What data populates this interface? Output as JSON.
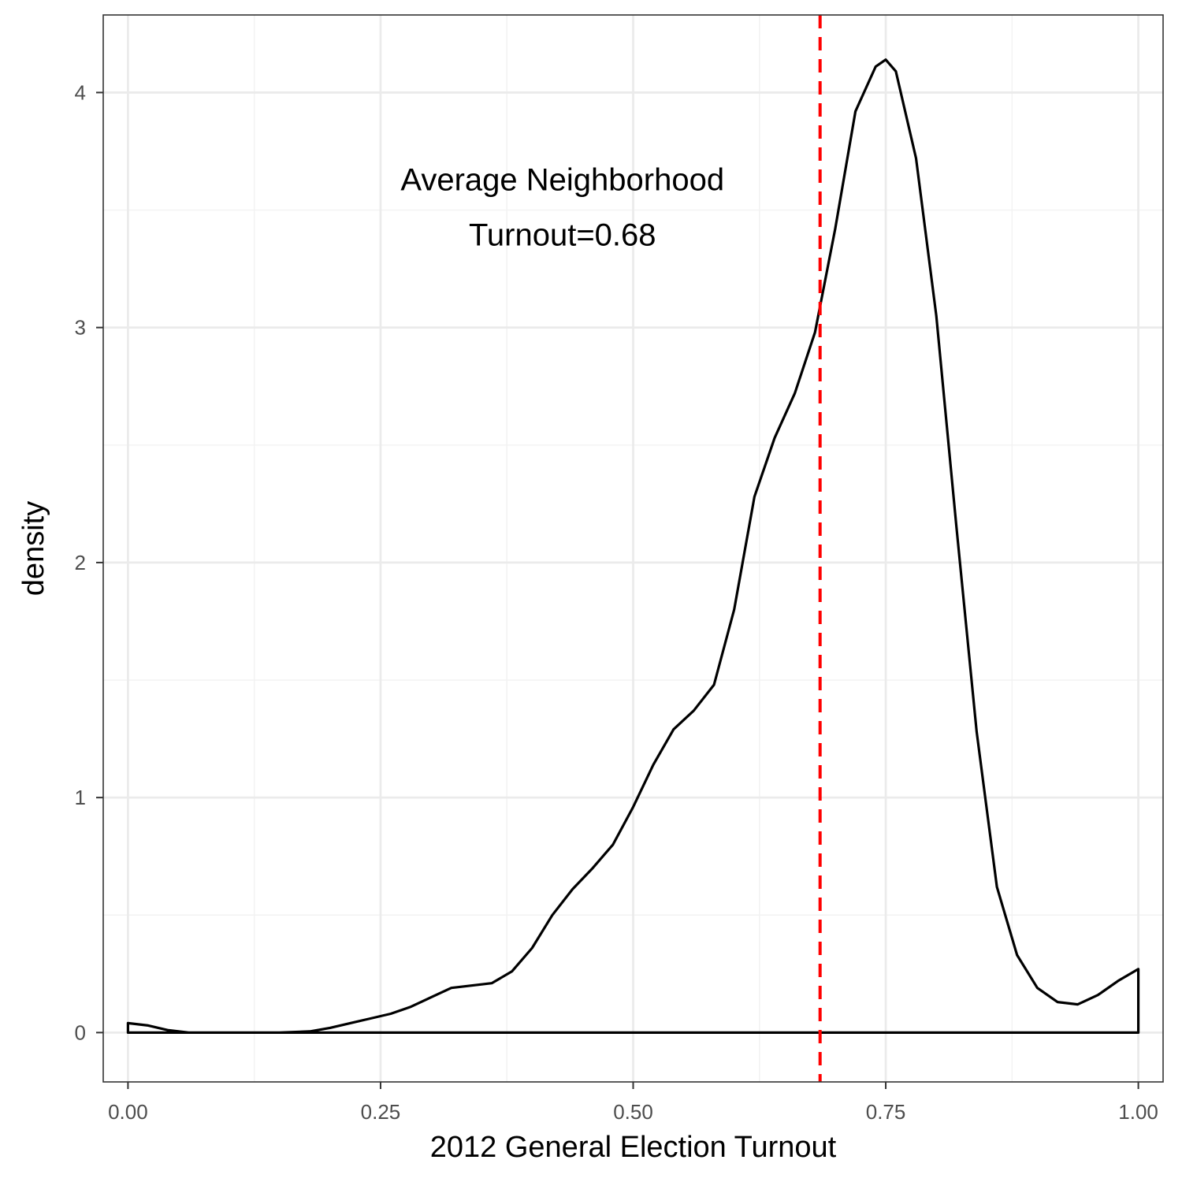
{
  "chart_data": {
    "type": "area",
    "xlabel": "2012 General Election Turnout",
    "ylabel": "density",
    "xlim": [
      -0.0245,
      1.0245
    ],
    "ylim": [
      -0.21,
      4.33
    ],
    "x_ticks": [
      0.0,
      0.25,
      0.5,
      0.75,
      1.0
    ],
    "x_tick_labels": [
      "0.00",
      "0.25",
      "0.50",
      "0.75",
      "1.00"
    ],
    "x_minor_ticks": [
      0.125,
      0.375,
      0.625,
      0.875
    ],
    "y_ticks": [
      0,
      1,
      2,
      3,
      4
    ],
    "y_tick_labels": [
      "0",
      "1",
      "2",
      "3",
      "4"
    ],
    "y_minor_ticks": [
      0.5,
      1.5,
      2.5,
      3.5
    ],
    "grid": true,
    "series": [
      {
        "x": [
          0.0,
          0.02,
          0.04,
          0.06,
          0.08,
          0.1,
          0.15,
          0.18,
          0.2,
          0.22,
          0.24,
          0.26,
          0.28,
          0.3,
          0.32,
          0.34,
          0.36,
          0.38,
          0.4,
          0.42,
          0.44,
          0.46,
          0.48,
          0.5,
          0.52,
          0.54,
          0.56,
          0.58,
          0.6,
          0.62,
          0.64,
          0.66,
          0.68,
          0.7,
          0.72,
          0.74,
          0.75,
          0.76,
          0.78,
          0.8,
          0.82,
          0.84,
          0.86,
          0.88,
          0.9,
          0.92,
          0.94,
          0.96,
          0.98,
          1.0
        ],
        "y": [
          0.04,
          0.03,
          0.01,
          0.0,
          0.0,
          0.0,
          0.0,
          0.005,
          0.02,
          0.04,
          0.06,
          0.08,
          0.11,
          0.15,
          0.19,
          0.2,
          0.21,
          0.26,
          0.36,
          0.5,
          0.61,
          0.7,
          0.8,
          0.96,
          1.14,
          1.29,
          1.37,
          1.48,
          1.8,
          2.28,
          2.53,
          2.72,
          2.98,
          3.42,
          3.92,
          4.11,
          4.14,
          4.09,
          3.72,
          3.05,
          2.15,
          1.28,
          0.62,
          0.33,
          0.19,
          0.13,
          0.12,
          0.16,
          0.22,
          0.27
        ]
      }
    ],
    "reference_line": {
      "x": 0.685,
      "color": "#ff0000",
      "style": "dashed"
    },
    "annotation": {
      "lines": [
        "Average Neighborhood",
        "Turnout=0.68"
      ],
      "x": 0.43,
      "y": 3.47
    },
    "colors": {
      "curve": "#000000",
      "reference_line": "#ff0000",
      "panel_border": "#333333",
      "grid_major": "#ebebeb",
      "grid_minor": "#f2f2f2",
      "tick_label": "#4d4d4d"
    }
  }
}
